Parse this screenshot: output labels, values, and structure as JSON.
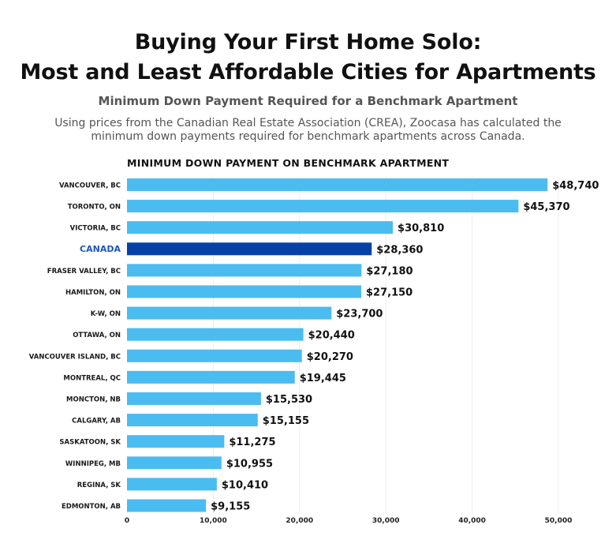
{
  "header": {
    "title_line1": "Buying Your First Home Solo:",
    "title_line2": "Most and Least Affordable Cities for Apartments",
    "subtitle": "Minimum Down Payment Required for a Benchmark Apartment",
    "description": "Using prices from the Canadian Real Estate Association (CREA), Zoocasa has calculated the minimum down payments required for benchmark apartments across Canada."
  },
  "chart_data": {
    "type": "bar",
    "orientation": "horizontal",
    "title": "MINIMUM DOWN PAYMENT ON BENCHMARK APARTMENT",
    "categories": [
      "VANCOUVER, BC",
      "TORONTO, ON",
      "VICTORIA, BC",
      "CANADA",
      "FRASER VALLEY, BC",
      "HAMILTON, ON",
      "K-W, ON",
      "OTTAWA, ON",
      "VANCOUVER ISLAND, BC",
      "MONTREAL, QC",
      "MONCTON, NB",
      "CALGARY, AB",
      "SASKATOON, SK",
      "WINNIPEG, MB",
      "REGINA, SK",
      "EDMONTON, AB"
    ],
    "values": [
      48740,
      45370,
      30810,
      28360,
      27180,
      27150,
      23700,
      20440,
      20270,
      19445,
      15530,
      15155,
      11275,
      10955,
      10410,
      9155
    ],
    "value_labels": [
      "$48,740",
      "$45,370",
      "$30,810",
      "$28,360",
      "$27,180",
      "$27,150",
      "$23,700",
      "$20,440",
      "$20,270",
      "$19,445",
      "$15,530",
      "$15,155",
      "$11,275",
      "$10,955",
      "$10,410",
      "$9,155"
    ],
    "highlight_category": "CANADA",
    "xlim": [
      0,
      50000
    ],
    "xticks": [
      0,
      10000,
      20000,
      30000,
      40000,
      50000
    ],
    "xtick_labels": [
      "0",
      "10,000",
      "20,000",
      "30,000",
      "40,000",
      "50,000"
    ],
    "grid": true,
    "colors": {
      "bar": "#4bbcf0",
      "highlight": "#0741a8",
      "highlight_label": "#1a56c9",
      "grid": "#ececec"
    }
  }
}
